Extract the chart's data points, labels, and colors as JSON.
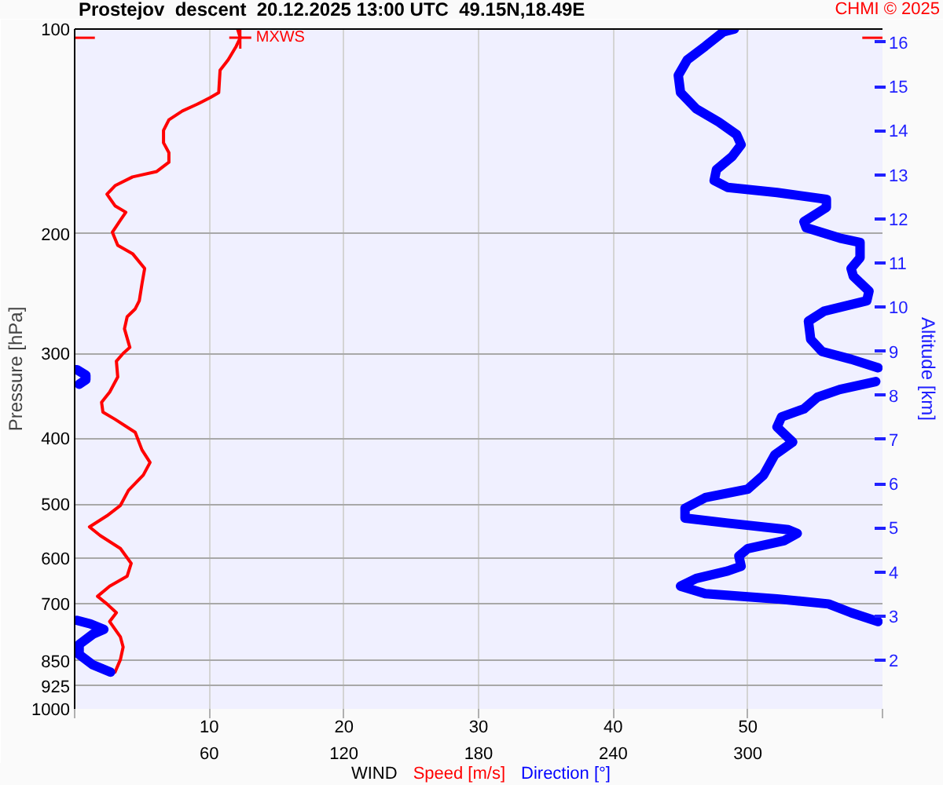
{
  "chart_data": {
    "type": "line",
    "title": "Prostejov  descent  20.12.2025 13:00 UTC  49.15N,18.49E",
    "xlabel": "WIND",
    "ylabel": "Pressure [hPa]",
    "y2label": "Altitude [km]",
    "annotations": [
      {
        "text": "MXWS",
        "x": 12.3,
        "y": 103
      },
      "CHMI © 2025"
    ],
    "xlim": [
      0,
      60
    ],
    "xticks": [
      {
        "value": 0,
        "label": null
      },
      10,
      20,
      30,
      40,
      50,
      {
        "value": 60,
        "label": null
      }
    ],
    "x2lim": [
      0,
      360
    ],
    "x2ticks": [
      60,
      120,
      180,
      240,
      300
    ],
    "ylim": [
      1000,
      100
    ],
    "yticks": [
      100,
      200,
      300,
      400,
      500,
      600,
      700,
      850,
      925,
      1000
    ],
    "y2lim": [
      0.9,
      16.3
    ],
    "y2ticks": [
      2,
      3,
      4,
      5,
      6,
      7,
      8,
      9,
      10,
      11,
      12,
      13,
      14,
      15,
      16
    ],
    "log": "y",
    "grid": true,
    "legend": "bottom",
    "series": [
      {
        "name": "Speed [m/s]",
        "color": "#ff0000",
        "x": [
          12.1,
          12.3,
          12.0,
          11.4,
          10.8,
          10.7,
          10.1,
          9.1,
          8.0,
          7.0,
          6.6,
          6.6,
          7.0,
          7.0,
          6.1,
          4.3,
          3.0,
          2.4,
          3.0,
          3.8,
          3.4,
          2.8,
          3.2,
          4.3,
          5.2,
          5.0,
          4.8,
          4.5,
          3.9,
          3.7,
          4.1,
          3.6,
          3.1,
          3.2,
          2.6,
          2.0,
          2.1,
          3.0,
          4.5,
          5.0,
          5.6,
          5.1,
          4.0,
          3.4,
          2.4,
          1.1,
          1.9,
          3.4,
          4.2,
          3.9,
          2.6,
          1.7,
          2.4,
          3.1,
          2.6,
          3.4,
          3.6,
          3.4,
          3.0
        ],
        "values": [
          100,
          103,
          106,
          111,
          115,
          124,
          126,
          129,
          132,
          136,
          141,
          147,
          152,
          157,
          162,
          165,
          170,
          175,
          182,
          186,
          191,
          199,
          208,
          214,
          225,
          237,
          251,
          258,
          265,
          276,
          294,
          300,
          308,
          325,
          342,
          354,
          366,
          375,
          392,
          416,
          434,
          453,
          477,
          502,
          520,
          540,
          556,
          581,
          611,
          638,
          660,
          683,
          701,
          722,
          744,
          784,
          811,
          846,
          883
        ]
      },
      {
        "name": "Direction [°]",
        "color": "#0000ff",
        "axis": "x2",
        "x": [
          294,
          289,
          281,
          273,
          269,
          270,
          277,
          287,
          295,
          297,
          293,
          286,
          285,
          291,
          313,
          335,
          335,
          325,
          326,
          341,
          350,
          350,
          346,
          347,
          354,
          353,
          334,
          327,
          328,
          333,
          346,
          358,
          null,
          1,
          5,
          5,
          2,
          null,
          357,
          341,
          331,
          325,
          315,
          313,
          320,
          312,
          307,
          300,
          281,
          272,
          272,
          291,
          318,
          322,
          316,
          300,
          296,
          297,
          291,
          277,
          270,
          281,
          313,
          336,
          346,
          358,
          null,
          1,
          7,
          13,
          8,
          2,
          2,
          8,
          16
        ],
        "values": [
          100,
          101,
          106,
          111,
          117,
          124,
          131,
          137,
          143,
          148,
          154,
          161,
          167,
          171,
          174,
          178,
          183,
          192,
          196,
          203,
          206,
          217,
          225,
          231,
          243,
          251,
          260,
          269,
          286,
          298,
          306,
          315,
          null,
          317,
          323,
          328,
          333,
          null,
          330,
          339,
          348,
          362,
          372,
          385,
          405,
          423,
          453,
          475,
          489,
          507,
          524,
          533,
          545,
          552,
          566,
          581,
          596,
          617,
          627,
          643,
          660,
          677,
          689,
          701,
          722,
          744,
          null,
          741,
          750,
          764,
          777,
          804,
          832,
          861,
          883
        ]
      }
    ]
  }
}
